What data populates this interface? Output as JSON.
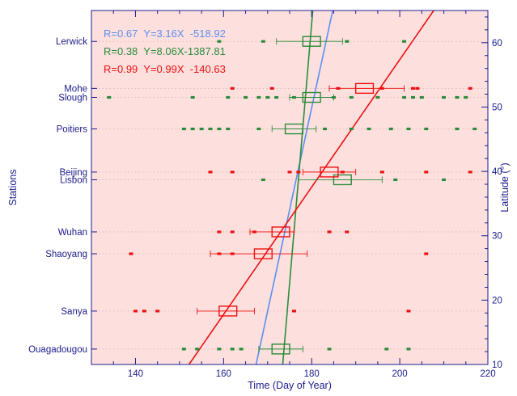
{
  "chart_data": {
    "type": "scatter",
    "xlabel": "Time (Day of Year)",
    "ylabel_left": "Stations",
    "ylabel_right": "Latitude (°)",
    "xlim": [
      130,
      220
    ],
    "ylim": [
      10,
      65
    ],
    "x_ticks": [
      140,
      160,
      180,
      200,
      220
    ],
    "x_tick_labels": [
      "140",
      "160",
      "180",
      "200",
      "220"
    ],
    "y_ticks_right": [
      10,
      20,
      30,
      40,
      50,
      60
    ],
    "y_tick_labels_right": [
      "10",
      "20",
      "30",
      "40",
      "50",
      "60"
    ],
    "grid": "horizontal dotted at stations",
    "background_color": "#fde0de",
    "colors": {
      "red": "#ee1111",
      "green": "#2a8c3a",
      "blue": "#5b8ff0",
      "axis": "#1b1b8c",
      "grid": "#d8b0b0"
    },
    "stations": [
      {
        "name": "Lerwick",
        "latitude": 60.2
      },
      {
        "name": "Mohe",
        "latitude": 52.9
      },
      {
        "name": "Slough",
        "latitude": 51.5
      },
      {
        "name": "Poitiers",
        "latitude": 46.6
      },
      {
        "name": "Beijing",
        "latitude": 39.9
      },
      {
        "name": "Lisbon",
        "latitude": 38.7
      },
      {
        "name": "Wuhan",
        "latitude": 30.6
      },
      {
        "name": "Shaoyang",
        "latitude": 27.2
      },
      {
        "name": "Sanya",
        "latitude": 18.3
      },
      {
        "name": "Ouagadougou",
        "latitude": 12.4
      }
    ],
    "legend": [
      {
        "text": "R=0.67  Y=3.16X  -518.92",
        "color": "blue"
      },
      {
        "text": "R=0.38  Y=8.06X-1387.81",
        "color": "green"
      },
      {
        "text": "R=0.99  Y=0.99X  -140.63",
        "color": "red"
      }
    ],
    "series": [
      {
        "color": "blue",
        "fit": {
          "slope": 3.16,
          "intercept": -518.92
        },
        "boxes": [],
        "points": []
      },
      {
        "color": "green",
        "fit": {
          "slope": 8.06,
          "intercept": -1387.81
        },
        "boxes": [
          {
            "station": "Lerwick",
            "q1": 178,
            "q3": 182,
            "median": 179.5,
            "whisker_low": 172,
            "whisker_high": 187
          },
          {
            "station": "Slough",
            "q1": 178,
            "q3": 182,
            "median": 180,
            "whisker_low": 175,
            "whisker_high": 185
          },
          {
            "station": "Poitiers",
            "q1": 174,
            "q3": 178,
            "median": 176,
            "whisker_low": 171,
            "whisker_high": 181
          },
          {
            "station": "Lisbon",
            "q1": 185,
            "q3": 189,
            "median": 187,
            "whisker_low": 177,
            "whisker_high": 196
          },
          {
            "station": "Ouagadougou",
            "q1": 171,
            "q3": 175,
            "median": 173,
            "whisker_low": 168,
            "whisker_high": 178
          }
        ],
        "points": [
          {
            "station": "Lerwick",
            "days": [
              159,
              169,
              188,
              201
            ]
          },
          {
            "station": "Slough",
            "days": [
              134,
              153,
              161,
              165,
              168,
              170,
              172,
              176,
              185,
              189,
              195,
              201,
              203,
              205,
              210,
              213,
              215
            ]
          },
          {
            "station": "Poitiers",
            "days": [
              151,
              153,
              155,
              157,
              159,
              161,
              168,
              183,
              189,
              193,
              198,
              202,
              206,
              213,
              217
            ]
          },
          {
            "station": "Lisbon",
            "days": [
              169,
              199,
              210
            ]
          },
          {
            "station": "Ouagadougou",
            "days": [
              151,
              154,
              159,
              162,
              164,
              184,
              197,
              202
            ]
          }
        ]
      },
      {
        "color": "red",
        "fit": {
          "slope": 0.99,
          "intercept": -140.63
        },
        "boxes": [
          {
            "station": "Mohe",
            "q1": 190,
            "q3": 194,
            "median": 192,
            "whisker_low": 184,
            "whisker_high": 201
          },
          {
            "station": "Beijing",
            "q1": 182,
            "q3": 186,
            "median": 184,
            "whisker_low": 178,
            "whisker_high": 190
          },
          {
            "station": "Wuhan",
            "q1": 171,
            "q3": 175,
            "median": 173,
            "whisker_low": 166,
            "whisker_high": 176
          },
          {
            "station": "Shaoyang",
            "q1": 167,
            "q3": 171,
            "median": 169,
            "whisker_low": 157,
            "whisker_high": 179
          },
          {
            "station": "Sanya",
            "q1": 159,
            "q3": 163,
            "median": 161,
            "whisker_low": 154,
            "whisker_high": 167
          }
        ],
        "points": [
          {
            "station": "Mohe",
            "days": [
              162,
              171,
              186,
              196,
              203,
              204,
              216
            ]
          },
          {
            "station": "Beijing",
            "days": [
              157,
              162,
              175,
              177,
              187,
              196,
              206,
              216
            ]
          },
          {
            "station": "Wuhan",
            "days": [
              159,
              162,
              167,
              184,
              188
            ]
          },
          {
            "station": "Shaoyang",
            "days": [
              139,
              159,
              162,
              206
            ]
          },
          {
            "station": "Sanya",
            "days": [
              140,
              142,
              145,
              176,
              202
            ]
          }
        ]
      }
    ]
  }
}
